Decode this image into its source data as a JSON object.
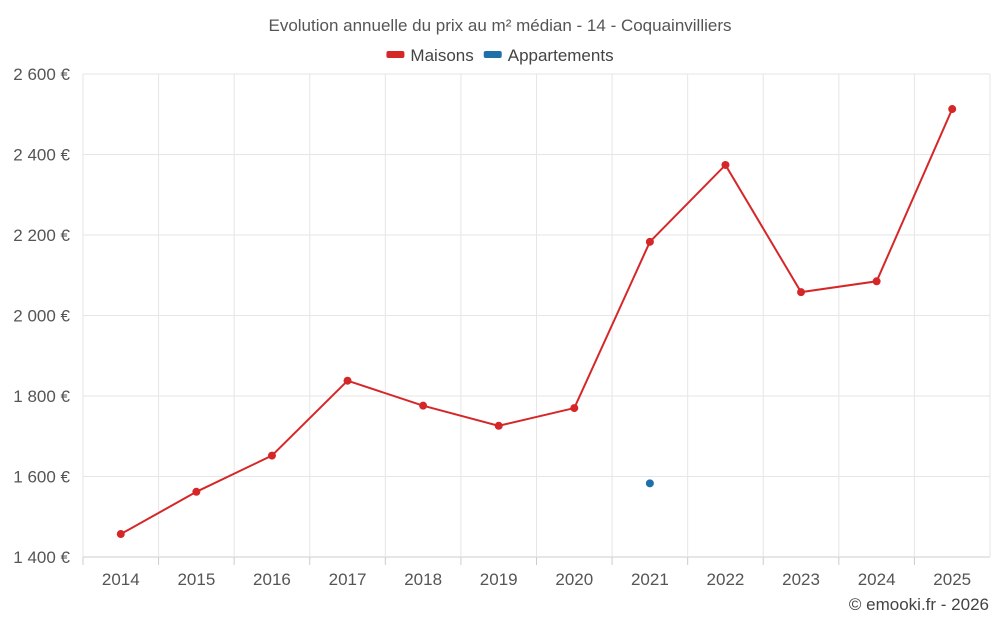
{
  "chart_data": {
    "type": "line",
    "title": "Evolution annuelle du prix au m² médian - 14 - Coquainvilliers",
    "categories": [
      "2014",
      "2015",
      "2016",
      "2017",
      "2018",
      "2019",
      "2020",
      "2021",
      "2022",
      "2023",
      "2024",
      "2025"
    ],
    "series": [
      {
        "name": "Maisons",
        "color": "#d62728",
        "values": [
          1457,
          1562,
          1652,
          1838,
          1776,
          1726,
          1770,
          2183,
          2374,
          2058,
          2085,
          2513
        ]
      },
      {
        "name": "Appartements",
        "color": "#1f6fa8",
        "values": [
          null,
          null,
          null,
          null,
          null,
          null,
          null,
          1583,
          null,
          null,
          null,
          null
        ]
      }
    ],
    "ylim": [
      1400,
      2600
    ],
    "yticks": [
      1400,
      1600,
      1800,
      2000,
      2200,
      2400,
      2600
    ],
    "ytick_labels": [
      "1 400 €",
      "1 600 €",
      "1 800 €",
      "2 000 €",
      "2 200 €",
      "2 400 €",
      "2 600 €"
    ],
    "xlabel": "",
    "ylabel": "",
    "grid": true,
    "legend_position": "top-center"
  },
  "credit": "© emooki.fr - 2026"
}
